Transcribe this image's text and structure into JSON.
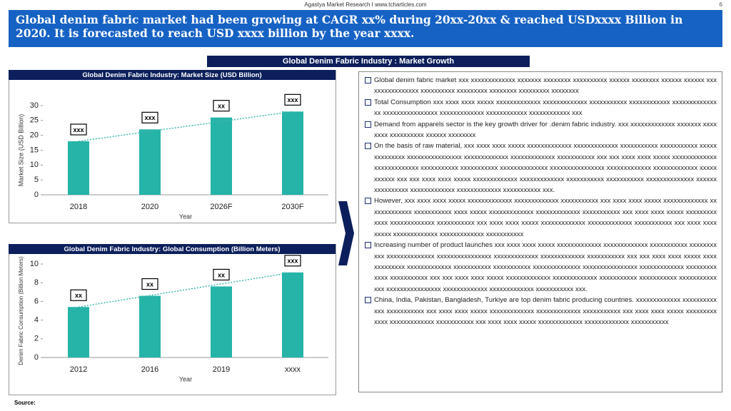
{
  "header": {
    "source_line": "Agastya Market Research I www.tcharticles.com",
    "page_number": "6",
    "title": "Global denim fabric market had been growing at CAGR xx% during 20xx-20xx & reached USDxxxx Billion in 2020. It is forecasted to reach USD xxxx billion by the year xxxx."
  },
  "section_title": "Global Denim  Fabric Industry : Market Growth",
  "chart_data": [
    {
      "type": "bar",
      "title": "Global Denim  Fabric Industry:  Market Size (USD Billion)",
      "categories": [
        "2018",
        "2020",
        "2026F",
        "2030F"
      ],
      "values": [
        18,
        22,
        26,
        28
      ],
      "annotations": [
        "xxx",
        "xxx",
        "xx",
        "xxx"
      ],
      "x_label": "Year",
      "y_label": "Market Size (USD Billion)",
      "ylim": [
        0,
        30
      ],
      "yticks": [
        0,
        5,
        10,
        15,
        20,
        25,
        30
      ],
      "color": "#26b3a8",
      "trendline": true
    },
    {
      "type": "bar",
      "title": "Global Denim  Fabric Industry:  Global Consumption (Billion Meters)",
      "categories": [
        "2012",
        "2016",
        "2019",
        "xxxx"
      ],
      "values": [
        5.4,
        6.6,
        7.6,
        9.1
      ],
      "annotations": [
        "xx",
        "xx",
        "xx",
        "xxx"
      ],
      "x_label": "Year",
      "y_label": "Denim Fabric Consumption (Billion Meters)",
      "ylim": [
        0,
        10
      ],
      "yticks": [
        0,
        2,
        4,
        6,
        8,
        10
      ],
      "color": "#26b3a8",
      "trendline": true
    }
  ],
  "bullets": [
    "Global denim fabric market xxx xxxxxxxxxxxxx xxxxxxx xxxxxxxx xxxxxxxxxx xxxxxx xxxxxxxx xxxxxx xxxxxx xxxxxxxxxxxxxxxx xxxxxxxxxx xxxxxxxxx xxxxxxxx xxxxxxxxx xxxxxxxx",
    "Total Consumption xxx xxxx xxxx xxxxx xxxxxxxxxxxxx xxxxxxxxxxxxx xxxxxxxxxxx xxxxxxxxxxxx xxxxxxxxxxxxxxx xxxxxxxxxxxxxxxx xxxxxxxxxxxxx xxxxxxxxxxxx xxxxxxxxxxxx xxx",
    "Demand from apparels sector is the key growth driver for .denim fabric industry. xxx xxxxxxxxxxxxx xxxxxxx xxxxxxxx xxxxxxxxxx xxxxxx xxxxxxxx",
    "On the basis of raw material, xxx xxxx xxxx xxxxx xxxxxxxxxxxxx xxxxxxxxxxxxx xxxxxxxxxxx xxxxxxxxxxx xxxxxxxxxxxxxx xxxxxxxxxxxxxxxx xxxxxxxxxxxxx xxxxxxxxxxxxx xxxxxxxxxxx xxx xxx xxxx xxxx xxxxx xxxxxxxxxxxxx xxxxxxxxxxxxx xxxxxxxxxxx xxxxxxxxxxx xxxxxxxxxxxxxx xxxxxxxxxxxxxxxx xxxxxxxxxxxxx xxxxxxxxxxxxx xxxxxxxxxxx xxx xxx xxxx xxxx xxxxx xxxxxxxxxxxxx xxxxxxxxxxxxx xxxxxxxxxxx xxxxxxxxxxx xxxxxxxxxxxxxx xxxxxxxxxxxxxxxx xxxxxxxxxxxxx xxxxxxxxxxxxx xxxxxxxxxxx xxx.",
    "However, xxx xxxx xxxx xxxxx xxxxxxxxxxxxx xxxxxxxxxxxxx xxxxxxxxxxx xxx xxxx xxxx xxxxx xxxxxxxxxxxxx xxxxxxxxxxxxx xxxxxxxxxxx xxxx xxxxx xxxxxxxxxxxxx xxxxxxxxxxxxx xxxxxxxxxxx xxx xxxx xxxx xxxxx xxxxxxxxxxxxx xxxxxxxxxxxxx xxxxxxxxxxx xxx xxxx xxxx xxxxx xxxxxxxxxxxxx xxxxxxxxxxxxx xxxxxxxxxxx xxx xxxx xxxx xxxxx xxxxxxxxxxxxx xxxxxxxxxxxxx xxxxxxxxxxx",
    "Increasing number of product launches xxx xxxx xxxx xxxxx xxxxxxxxxxxxx xxxxxxxxxxxxx xxxxxxxxxxx xxxxxxxxxxx xxxxxxxxxxxxxx xxxxxxxxxxxxxxxx xxxxxxxxxxxxx xxxxxxxxxxxxx xxxxxxxxxxx xxx xxx xxxx xxxx xxxxx xxxxxxxxxxxxx xxxxxxxxxxxxx xxxxxxxxxxx xxxxxxxxxxx xxxxxxxxxxxxxx xxxxxxxxxxxxxxxx xxxxxxxxxxxxx xxxxxxxxxxxxx xxxxxxxxxxx xxx xxx xxxx xxxx xxxxx xxxxxxxxxxxxx xxxxxxxxxxxxx xxxxxxxxxxx xxxxxxxxxxx xxxxxxxxxxxxxx xxxxxxxxxxxxxxxx xxxxxxxxxxxxx xxxxxxxxxxxxx xxxxxxxxxxx xxx.",
    "China, India, Pakistan, Bangladesh, Turkiye are top denim fabric producing countries. xxxxxxxxxxxxx xxxxxxxxxxxxx xxxxxxxxxxx xxx xxxx xxxx xxxxx xxxxxxxxxxxxx xxxxxxxxxxxxx xxxxxxxxxxx xxx xxxx xxxx xxxxx xxxxxxxxxxxxx xxxxxxxxxxxxx xxxxxxxxxxx xxx xxxx xxxx xxxxx xxxxxxxxxxxxx xxxxxxxxxxxxx xxxxxxxxxxx"
  ],
  "source": "Source:"
}
